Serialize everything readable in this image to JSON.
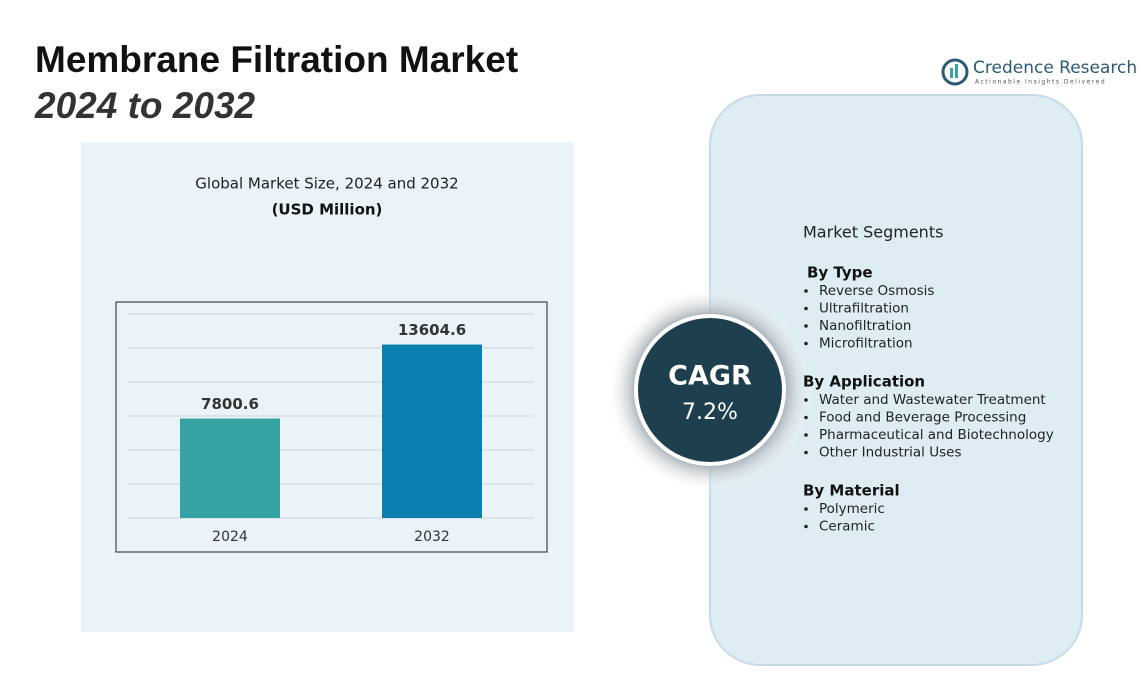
{
  "header": {
    "title": "Membrane Filtration Market",
    "subtitle": "2024 to 2032"
  },
  "logo": {
    "name": "Credence Research",
    "tagline": "Actionable Insights Delivered"
  },
  "chart_data": {
    "type": "bar",
    "title": "Global Market Size, 2024 and 2032",
    "subtitle": "(USD Million)",
    "categories": [
      "2024",
      "2032"
    ],
    "values": [
      7800.6,
      13604.6
    ],
    "colors": [
      "#35a3a3",
      "#0a7fb0"
    ],
    "ylim": [
      0,
      16000
    ],
    "grid": true
  },
  "cagr": {
    "label": "CAGR",
    "value": "7.2%"
  },
  "segments": {
    "title": "Market Segments",
    "groups": [
      {
        "title": "By Type",
        "items": [
          "Reverse Osmosis",
          "Ultrafiltration",
          "Nanofiltration",
          "Microfiltration"
        ]
      },
      {
        "title": "By Application",
        "items": [
          "Water and Wastewater Treatment",
          "Food and Beverage Processing",
          "Pharmaceutical and Biotechnology",
          "Other Industrial Uses"
        ]
      },
      {
        "title": "By Material",
        "items": [
          "Polymeric",
          "Ceramic"
        ]
      }
    ]
  }
}
